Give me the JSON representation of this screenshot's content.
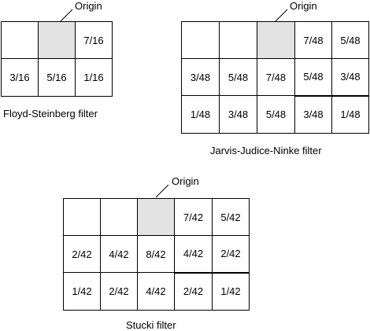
{
  "filters": [
    {
      "key": "fs",
      "caption": "Floyd-Steinberg filter",
      "origin_label": "Origin",
      "rows": [
        [
          "",
          "",
          "7/16"
        ],
        [
          "3/16",
          "5/16",
          "1/16"
        ]
      ]
    },
    {
      "key": "jjn",
      "caption": "Jarvis-Judice-Ninke filter",
      "origin_label": "Origin",
      "rows": [
        [
          "",
          "",
          "",
          "7/48",
          "5/48"
        ],
        [
          "3/48",
          "5/48",
          "7/48",
          "5/48",
          "3/48"
        ],
        [
          "1/48",
          "3/48",
          "5/48",
          "3/48",
          "1/48"
        ]
      ]
    },
    {
      "key": "stucki",
      "caption": "Stucki filter",
      "origin_label": "Origin",
      "rows": [
        [
          "",
          "",
          "",
          "7/42",
          "5/42"
        ],
        [
          "2/42",
          "4/42",
          "8/42",
          "4/42",
          "2/42"
        ],
        [
          "1/42",
          "2/42",
          "4/42",
          "2/42",
          "1/42"
        ]
      ]
    }
  ]
}
